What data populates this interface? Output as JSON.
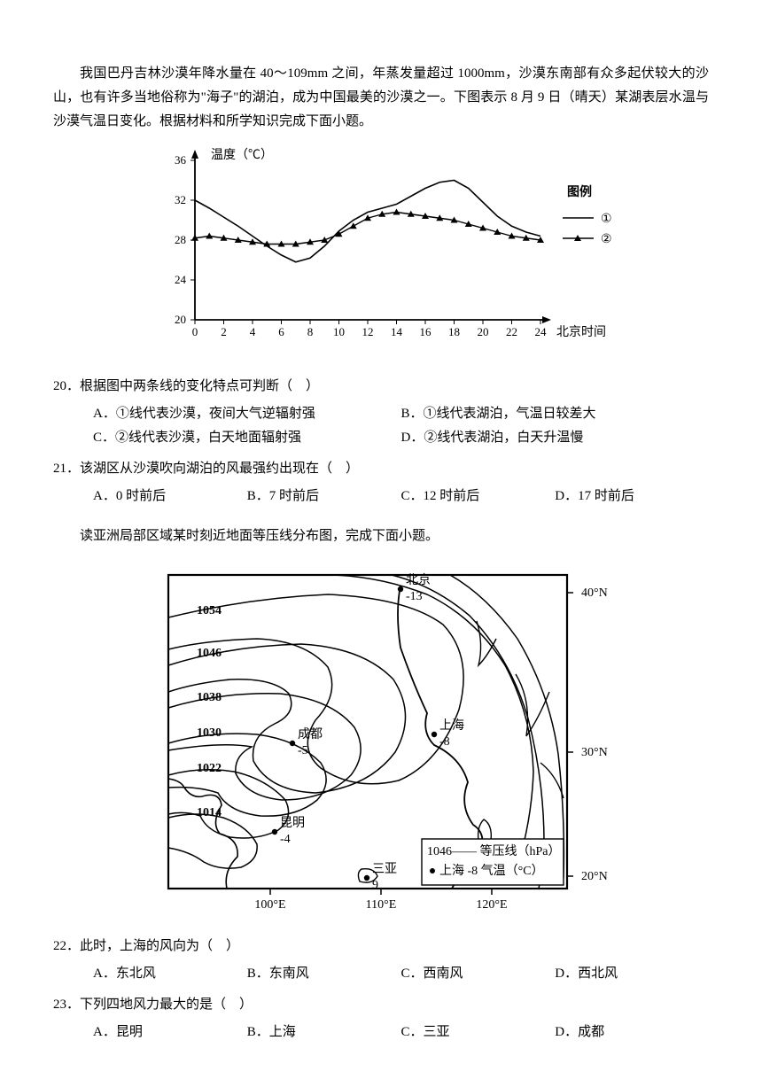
{
  "intro1": "我国巴丹吉林沙漠年降水量在 40～109mm 之间，年蒸发量超过 1000mm，沙漠东南部有众多起伏较大的沙山，也有许多当地俗称为\"海子\"的湖泊，成为中国最美的沙漠之一。下图表示 8 月 9 日（晴天）某湖表层水温与沙漠气温日变化。根据材料和所学知识完成下面小题。",
  "chart": {
    "y_title": "温度（℃）",
    "x_title": "北京时间",
    "legend_title": "图例",
    "legend_items": [
      "①",
      "②"
    ],
    "y_min": 20,
    "y_max": 36,
    "y_step": 4,
    "x_min": 0,
    "x_max": 24,
    "x_step": 2,
    "series1": [
      [
        0,
        32
      ],
      [
        1,
        31.2
      ],
      [
        2,
        30.3
      ],
      [
        3,
        29.4
      ],
      [
        4,
        28.4
      ],
      [
        5,
        27.4
      ],
      [
        6,
        26.5
      ],
      [
        7,
        25.8
      ],
      [
        8,
        26.2
      ],
      [
        9,
        27.4
      ],
      [
        10,
        28.9
      ],
      [
        11,
        30.0
      ],
      [
        12,
        30.8
      ],
      [
        13,
        31.2
      ],
      [
        14,
        31.6
      ],
      [
        15,
        32.4
      ],
      [
        16,
        33.2
      ],
      [
        17,
        33.8
      ],
      [
        18,
        34.0
      ],
      [
        19,
        33.2
      ],
      [
        20,
        31.8
      ],
      [
        21,
        30.4
      ],
      [
        22,
        29.4
      ],
      [
        23,
        28.8
      ],
      [
        24,
        28.4
      ]
    ],
    "series2": [
      [
        0,
        28.2
      ],
      [
        1,
        28.4
      ],
      [
        2,
        28.2
      ],
      [
        3,
        28.0
      ],
      [
        4,
        27.8
      ],
      [
        5,
        27.6
      ],
      [
        6,
        27.6
      ],
      [
        7,
        27.6
      ],
      [
        8,
        27.8
      ],
      [
        9,
        28.0
      ],
      [
        10,
        28.6
      ],
      [
        11,
        29.4
      ],
      [
        12,
        30.2
      ],
      [
        13,
        30.6
      ],
      [
        14,
        30.8
      ],
      [
        15,
        30.6
      ],
      [
        16,
        30.4
      ],
      [
        17,
        30.2
      ],
      [
        18,
        30.0
      ],
      [
        19,
        29.6
      ],
      [
        20,
        29.2
      ],
      [
        21,
        28.8
      ],
      [
        22,
        28.4
      ],
      [
        23,
        28.2
      ],
      [
        24,
        28.0
      ]
    ],
    "line_color": "#000000",
    "marker_color": "#000000",
    "grid_color": "#000000"
  },
  "q20": {
    "num": "20．",
    "stem": "根据图中两条线的变化特点可判断（　）",
    "A": "A．①线代表沙漠，夜间大气逆辐射强",
    "B": "B．①线代表湖泊，气温日较差大",
    "C": "C．②线代表沙漠，白天地面辐射强",
    "D": "D．②线代表湖泊，白天升温慢"
  },
  "q21": {
    "num": "21．",
    "stem": "该湖区从沙漠吹向湖泊的风最强约出现在（　）",
    "A": "A．0 时前后",
    "B": "B．7 时前后",
    "C": "C．12 时前后",
    "D": "D．17 时前后"
  },
  "intro2": "读亚洲局部区域某时刻近地面等压线分布图，完成下面小题。",
  "map": {
    "isobars": [
      "1054",
      "1046",
      "1038",
      "1030",
      "1022",
      "1014"
    ],
    "cities": {
      "beijing": {
        "name": "北京",
        "temp": "-13"
      },
      "shanghai": {
        "name": "上海",
        "temp": "-8"
      },
      "chengdu": {
        "name": "成都",
        "temp": "-5"
      },
      "kunming": {
        "name": "昆明",
        "temp": "-4"
      },
      "sanya": {
        "name": "三亚",
        "temp": "9"
      }
    },
    "lat": [
      "40°N",
      "30°N",
      "20°N"
    ],
    "lon": [
      "100°E",
      "110°E",
      "120°E"
    ],
    "legend_isobar": "1046—— 等压线（hPa）",
    "legend_city": "上海 -8 气温（°C）",
    "line_color": "#000000"
  },
  "q22": {
    "num": "22．",
    "stem": "此时，上海的风向为（　）",
    "A": "A．东北风",
    "B": "B．东南风",
    "C": "C．西南风",
    "D": "D．西北风"
  },
  "q23": {
    "num": "23．",
    "stem": "下列四地风力最大的是（　）",
    "A": "A．昆明",
    "B": "B．上海",
    "C": "C．三亚",
    "D": "D．成都"
  }
}
